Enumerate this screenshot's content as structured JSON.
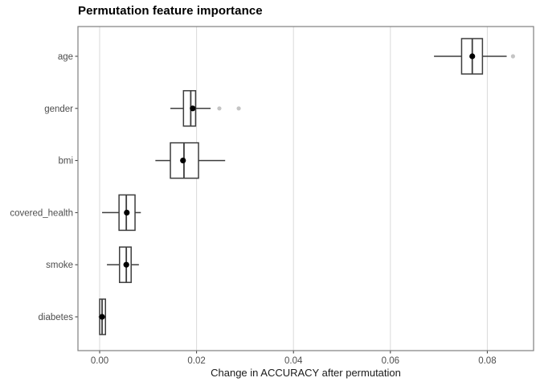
{
  "chart_data": {
    "type": "boxplot",
    "orientation": "horizontal",
    "title": "Permutation feature importance",
    "xlabel": "Change in ACCURACY after permutation",
    "xlim": [
      -0.00448,
      0.08955
    ],
    "x_ticks": [
      {
        "value": 0.0,
        "label": "0.00"
      },
      {
        "value": 0.02,
        "label": "0.02"
      },
      {
        "value": 0.04,
        "label": "0.04"
      },
      {
        "value": 0.06,
        "label": "0.06"
      },
      {
        "value": 0.08,
        "label": "0.08"
      }
    ],
    "grid": "major-vertical-only",
    "legend": "none",
    "categories": [
      "age",
      "gender",
      "bmi",
      "covered_health",
      "smoke",
      "diabetes"
    ],
    "series": [
      {
        "name": "age",
        "whisker_low": 0.069,
        "q1": 0.0747,
        "median": 0.0769,
        "q3": 0.079,
        "whisker_high": 0.084,
        "mean": 0.0769,
        "outliers": [
          0.0853
        ]
      },
      {
        "name": "gender",
        "whisker_low": 0.0146,
        "q1": 0.0173,
        "median": 0.0188,
        "q3": 0.0198,
        "whisker_high": 0.0229,
        "mean": 0.0192,
        "outliers": [
          0.0247,
          0.0287
        ]
      },
      {
        "name": "bmi",
        "whisker_low": 0.0115,
        "q1": 0.0146,
        "median": 0.0174,
        "q3": 0.0204,
        "whisker_high": 0.0259,
        "mean": 0.0172,
        "outliers": []
      },
      {
        "name": "covered_health",
        "whisker_low": 0.0005,
        "q1": 0.004,
        "median": 0.0055,
        "q3": 0.0073,
        "whisker_high": 0.0085,
        "mean": 0.0056,
        "outliers": []
      },
      {
        "name": "smoke",
        "whisker_low": 0.0015,
        "q1": 0.0041,
        "median": 0.0055,
        "q3": 0.0065,
        "whisker_high": 0.0081,
        "mean": 0.0055,
        "outliers": []
      },
      {
        "name": "diabetes",
        "whisker_low": -0.0002,
        "q1": 0.0,
        "median": 0.0005,
        "q3": 0.0012,
        "whisker_high": 0.0013,
        "mean": 0.0005,
        "outliers": []
      }
    ],
    "colors": {
      "box_border": "#3d3d3d",
      "median_line": "#3d3d3d",
      "whisker": "#3d3d3d",
      "mean_dot": "#000000",
      "outlier_fill": "#c4c4c4",
      "panel_border": "#7f7f7f",
      "gridline": "#d9d9d9",
      "tick_mark": "#333333",
      "axis_text": "#4d4d4d",
      "panel_bg": "#ffffff"
    }
  }
}
